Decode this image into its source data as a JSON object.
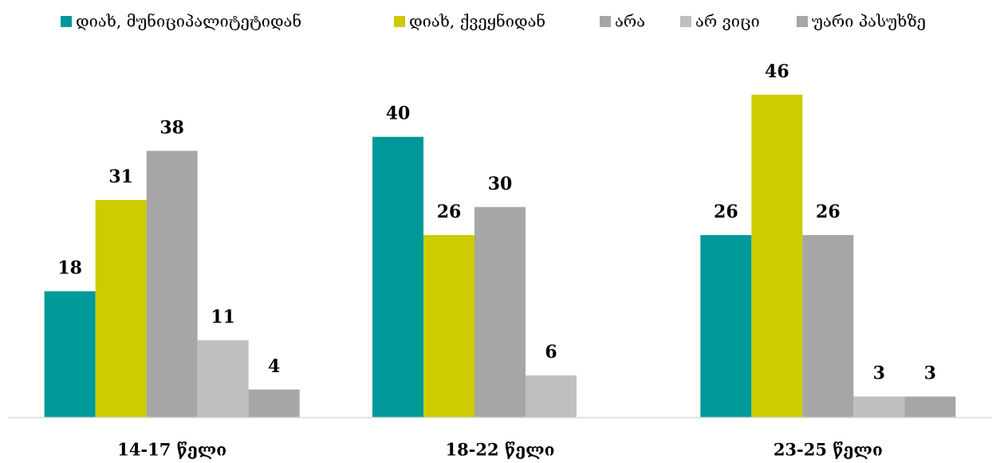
{
  "chart_data": {
    "type": "bar",
    "categories": [
      "14-17 წელი",
      "18-22 წელი",
      "23-25 წელი"
    ],
    "series": [
      {
        "name": "დიახ, მუნიციპალიტეტიდან",
        "color": "#009999",
        "values": [
          18,
          40,
          26
        ]
      },
      {
        "name": "დიახ, ქვეყნიდან",
        "color": "#cccc00",
        "values": [
          31,
          26,
          46
        ]
      },
      {
        "name": "არა",
        "color": "#a6a6a6",
        "values": [
          38,
          30,
          26
        ]
      },
      {
        "name": "არ ვიცი",
        "color": "#bfbfbf",
        "values": [
          11,
          6,
          3
        ]
      },
      {
        "name": "უარი პასუხზე",
        "color": "#a6a6a6",
        "values": [
          4,
          null,
          3
        ]
      }
    ],
    "ylim": [
      0,
      52
    ]
  }
}
